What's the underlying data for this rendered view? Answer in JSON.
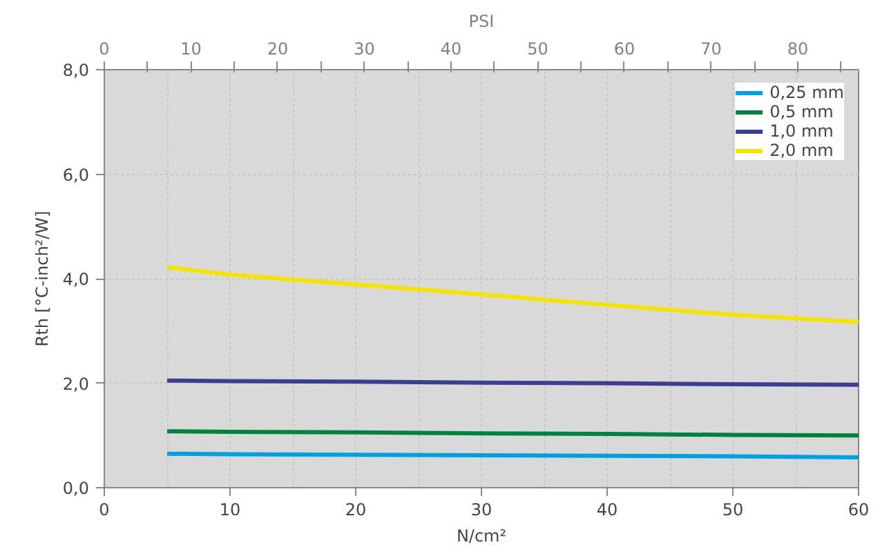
{
  "chart_data": {
    "type": "line",
    "xlabel": "N/cm²",
    "ylabel": "Rth [°C-inch²/W]",
    "x2label": "PSI",
    "x": [
      5,
      10,
      20,
      30,
      40,
      50,
      60
    ],
    "series": [
      {
        "name": "0,25 mm",
        "color": "#00a0e3",
        "values": [
          0.65,
          0.64,
          0.63,
          0.62,
          0.61,
          0.6,
          0.58
        ]
      },
      {
        "name": "0,5 mm",
        "color": "#00843d",
        "values": [
          1.08,
          1.07,
          1.06,
          1.04,
          1.03,
          1.01,
          1.0
        ]
      },
      {
        "name": "1,0 mm",
        "color": "#3a3f94",
        "values": [
          2.05,
          2.04,
          2.03,
          2.01,
          2.0,
          1.98,
          1.97
        ]
      },
      {
        "name": "2,0 mm",
        "color": "#f5e400",
        "values": [
          4.22,
          4.08,
          3.89,
          3.7,
          3.5,
          3.31,
          3.17
        ]
      }
    ],
    "xlim": [
      0,
      60
    ],
    "xticks": [
      0,
      10,
      20,
      30,
      40,
      50,
      60
    ],
    "x2lim": [
      0,
      87.02
    ],
    "x2ticks": [
      0,
      {
        "value": 5,
        "label": null
      },
      10,
      {
        "value": 15,
        "label": null
      },
      20,
      {
        "value": 25,
        "label": null
      },
      30,
      {
        "value": 35,
        "label": null
      },
      40,
      {
        "value": 45,
        "label": null
      },
      50,
      {
        "value": 55,
        "label": null
      },
      60,
      {
        "value": 65,
        "label": null
      },
      70,
      {
        "value": 75,
        "label": null
      },
      80,
      {
        "value": 85,
        "label": null
      }
    ],
    "ylim": [
      0,
      8
    ],
    "yticks": [
      {
        "value": 0,
        "label": "0,0"
      },
      {
        "value": 2,
        "label": "2,0"
      },
      {
        "value": 4,
        "label": "4,0"
      },
      {
        "value": 6,
        "label": "6,0"
      },
      {
        "value": 8,
        "label": "8,0"
      }
    ],
    "grid": true,
    "legend": "top right",
    "marker": "none",
    "line_style": "solid"
  }
}
